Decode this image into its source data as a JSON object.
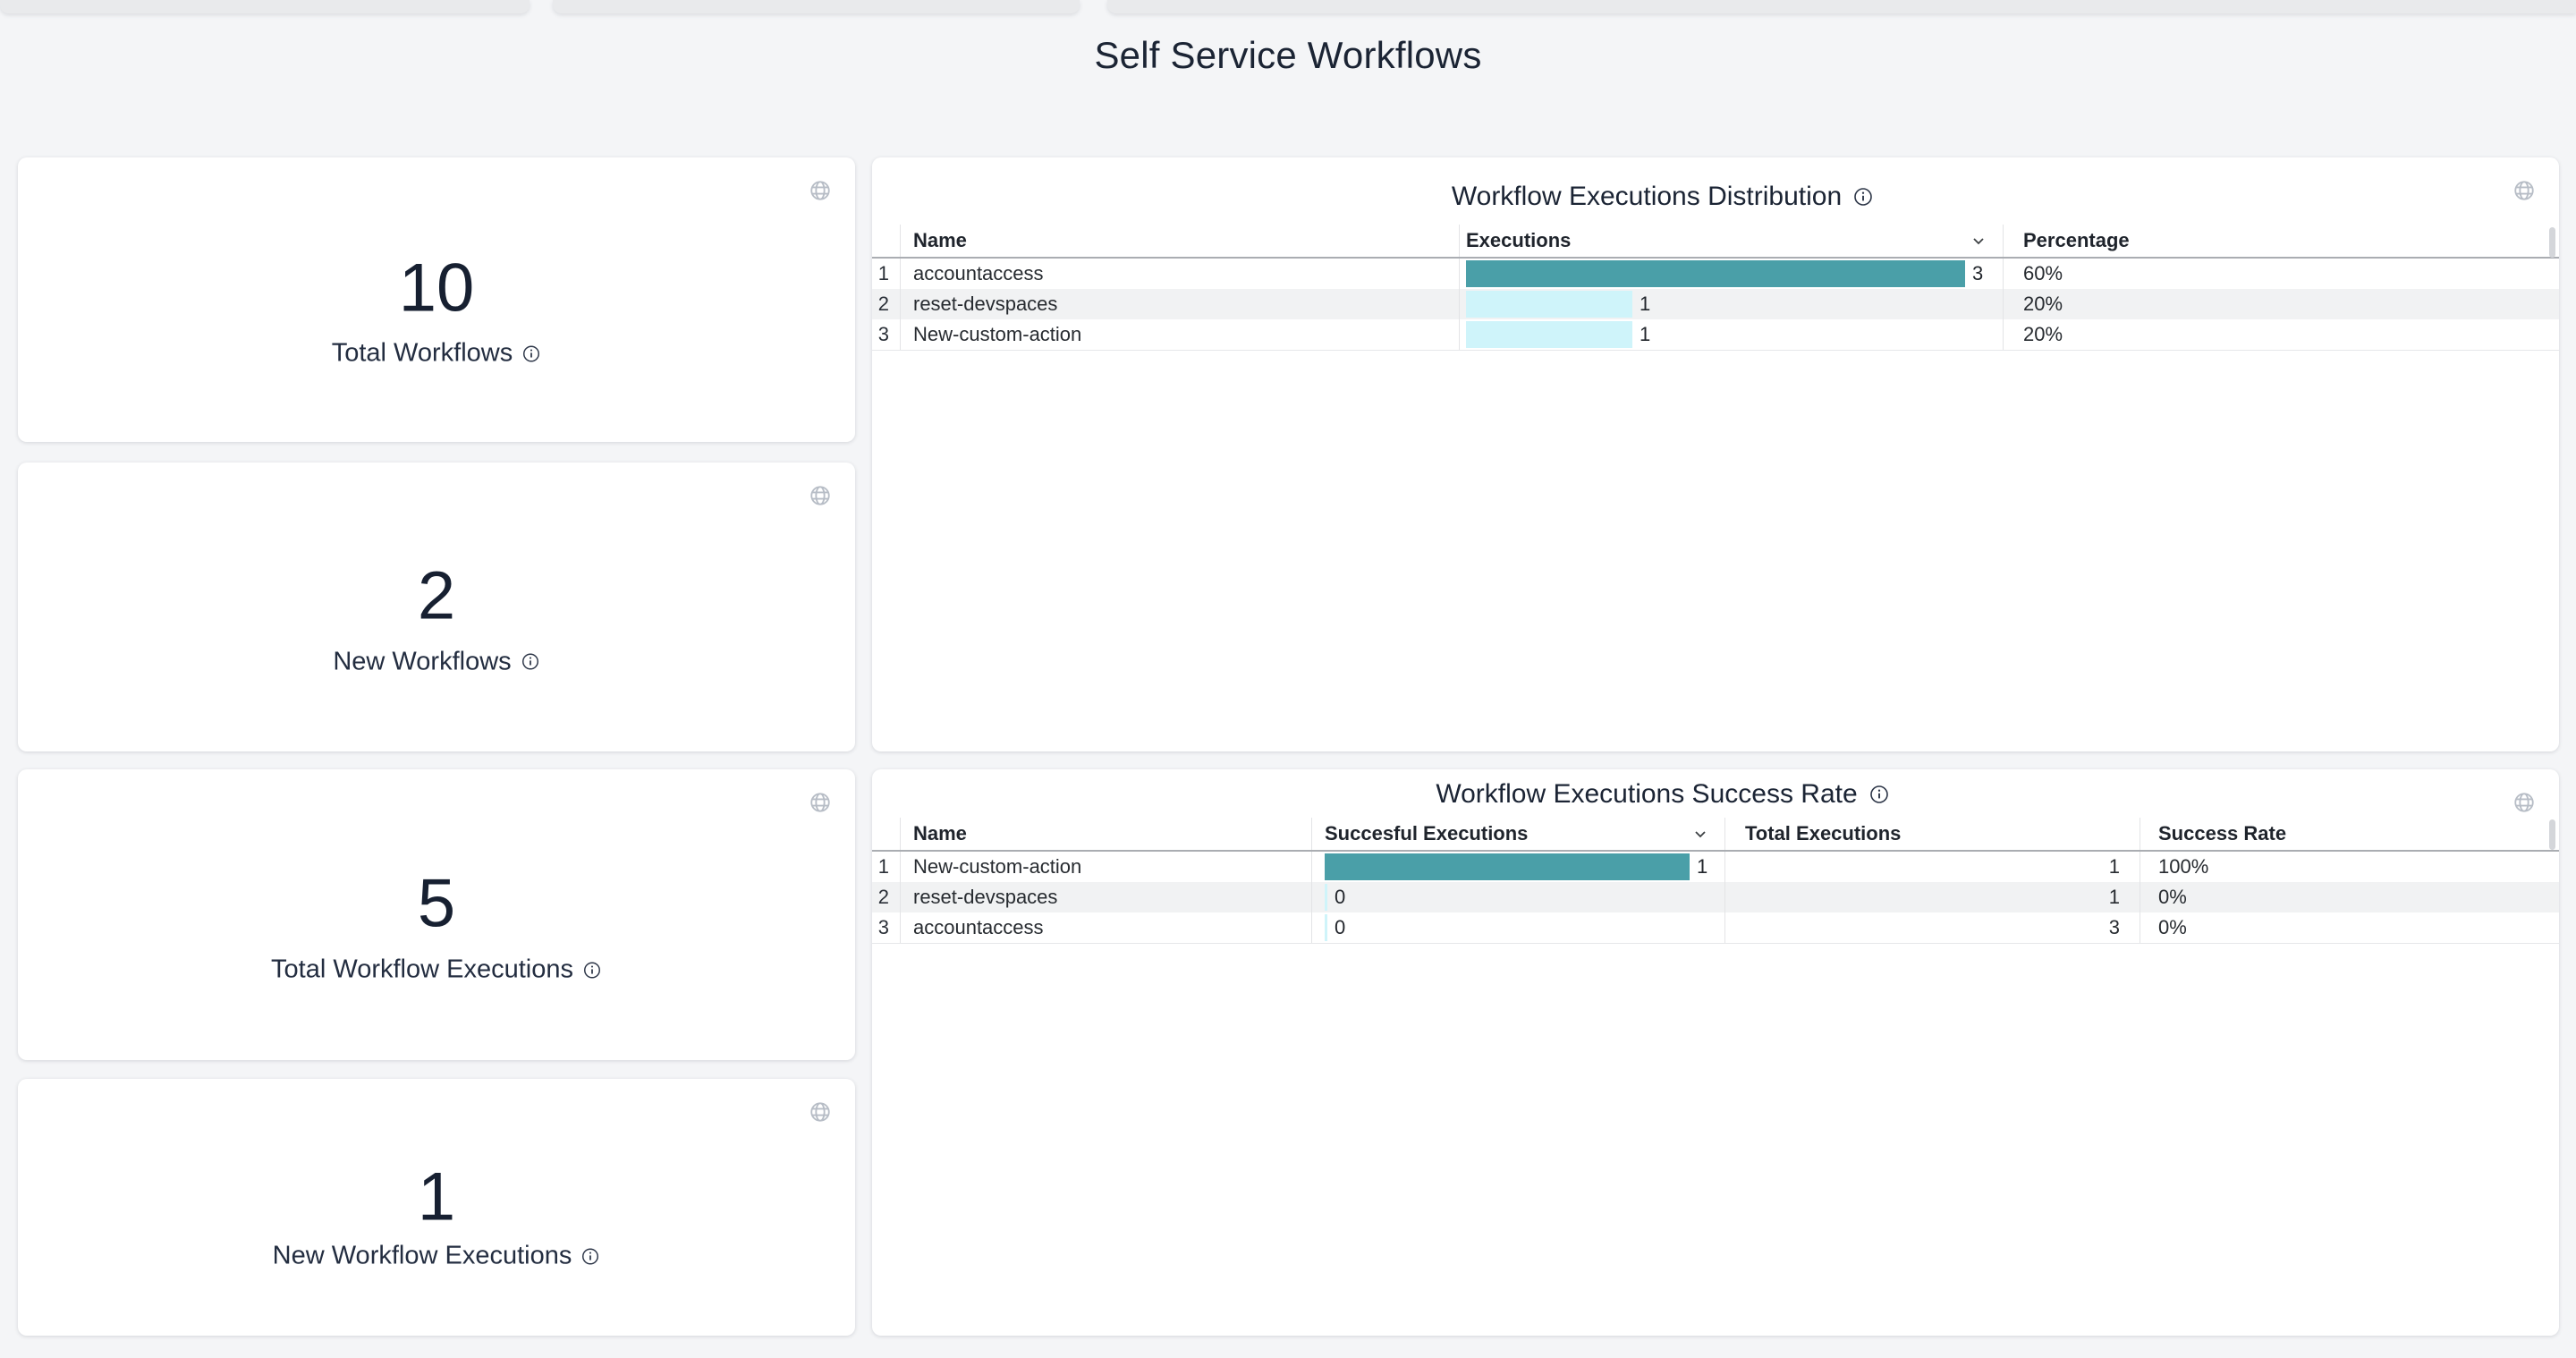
{
  "page": {
    "title": "Self Service Workflows"
  },
  "colors": {
    "bar_primary": "#4A9FA8",
    "bar_secondary": "#CFF4FA",
    "background": "#f4f5f7",
    "card": "#ffffff",
    "title_text": "#1b2434"
  },
  "stat_cards": [
    {
      "value": "10",
      "label": "Total Workflows"
    },
    {
      "value": "2",
      "label": "New Workflows"
    },
    {
      "value": "5",
      "label": "Total Workflow Executions"
    },
    {
      "value": "1",
      "label": "New Workflow Executions"
    }
  ],
  "distribution": {
    "title": "Workflow Executions Distribution",
    "columns": {
      "name": "Name",
      "executions": "Executions",
      "percentage": "Percentage"
    },
    "sorted_by": "Executions",
    "rows": [
      {
        "num": "1",
        "name": "accountaccess",
        "executions": 3,
        "percentage": "60%"
      },
      {
        "num": "2",
        "name": "reset-devspaces",
        "executions": 1,
        "percentage": "20%"
      },
      {
        "num": "3",
        "name": "New-custom-action",
        "executions": 1,
        "percentage": "20%"
      }
    ]
  },
  "success": {
    "title": "Workflow Executions Success Rate",
    "columns": {
      "name": "Name",
      "successful": "Succesful Executions",
      "total": "Total Executions",
      "rate": "Success Rate"
    },
    "sorted_by": "Succesful Executions",
    "rows": [
      {
        "num": "1",
        "name": "New-custom-action",
        "successful": 1,
        "total": "1",
        "rate": "100%"
      },
      {
        "num": "2",
        "name": "reset-devspaces",
        "successful": 0,
        "total": "1",
        "rate": "0%"
      },
      {
        "num": "3",
        "name": "accountaccess",
        "successful": 0,
        "total": "3",
        "rate": "0%"
      }
    ]
  },
  "chart_data": [
    {
      "type": "bar",
      "title": "Workflow Executions Distribution",
      "categories": [
        "accountaccess",
        "reset-devspaces",
        "New-custom-action"
      ],
      "series": [
        {
          "name": "Executions",
          "values": [
            3,
            1,
            1
          ]
        },
        {
          "name": "Percentage",
          "values": [
            "60%",
            "20%",
            "20%"
          ]
        }
      ],
      "xlabel": "",
      "ylabel": "Executions",
      "legend": "none",
      "orientation": "horizontal"
    },
    {
      "type": "bar",
      "title": "Workflow Executions Success Rate",
      "categories": [
        "New-custom-action",
        "reset-devspaces",
        "accountaccess"
      ],
      "series": [
        {
          "name": "Succesful Executions",
          "values": [
            1,
            0,
            0
          ]
        },
        {
          "name": "Total Executions",
          "values": [
            1,
            1,
            3
          ]
        },
        {
          "name": "Success Rate",
          "values": [
            "100%",
            "0%",
            "0%"
          ]
        }
      ],
      "xlabel": "",
      "ylabel": "Succesful Executions",
      "legend": "none",
      "orientation": "horizontal"
    }
  ]
}
